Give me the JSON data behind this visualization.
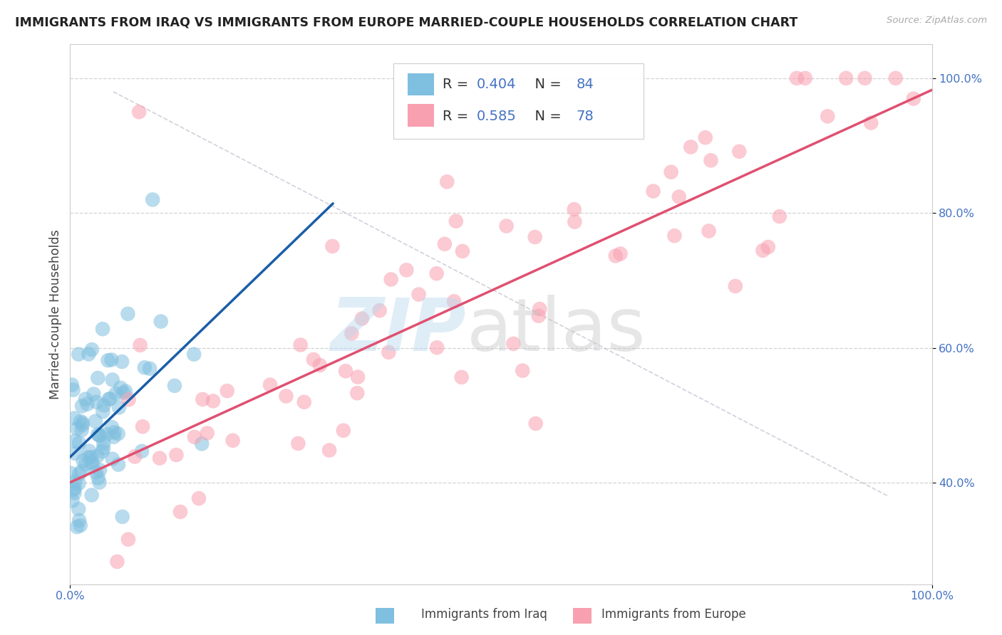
{
  "title": "IMMIGRANTS FROM IRAQ VS IMMIGRANTS FROM EUROPE MARRIED-COUPLE HOUSEHOLDS CORRELATION CHART",
  "source": "Source: ZipAtlas.com",
  "ylabel": "Married-couple Households",
  "xlim": [
    0,
    1
  ],
  "ylim": [
    0.25,
    1.05
  ],
  "legend_label1": "Immigrants from Iraq",
  "legend_label2": "Immigrants from Europe",
  "R1": 0.404,
  "N1": 84,
  "R2": 0.585,
  "N2": 78,
  "color1": "#7fbfdf",
  "color2": "#f8a0b0",
  "trend_color1": "#1a5ea8",
  "trend_color2": "#e05070",
  "background_color": "#ffffff",
  "grid_color": "#c8c8c8",
  "seed1": 12,
  "seed2": 77
}
